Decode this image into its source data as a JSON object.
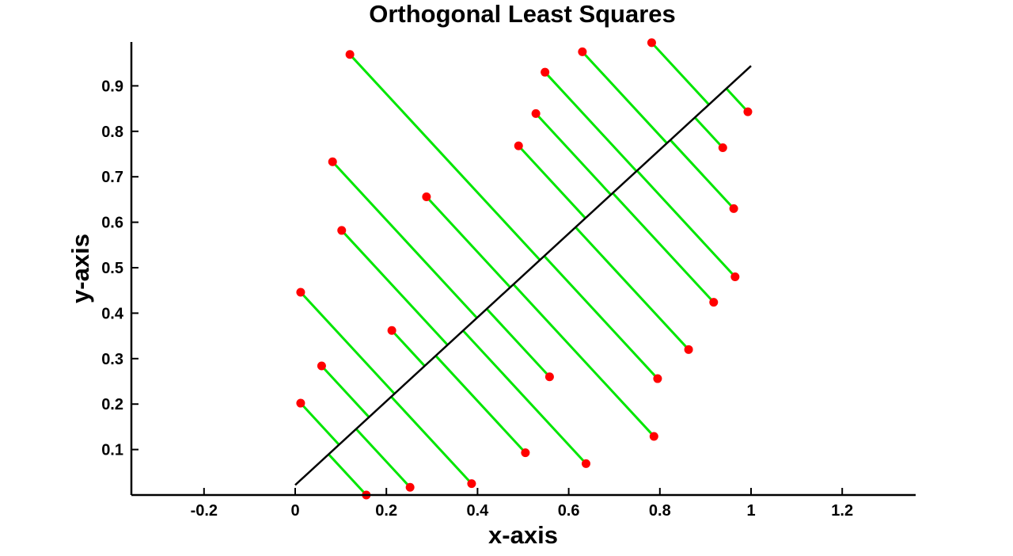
{
  "chart_data": {
    "type": "scatter",
    "title": "Orthogonal Least Squares",
    "xlabel": "x-axis",
    "ylabel": "y-axis",
    "xlim": [
      -0.36,
      1.36
    ],
    "ylim": [
      0.0,
      1.01
    ],
    "x_ticks": [
      "-0.2",
      "0",
      "0.2",
      "0.4",
      "0.6",
      "0.8",
      "1",
      "1.2"
    ],
    "y_ticks": [
      "0.1",
      "0.2",
      "0.3",
      "0.4",
      "0.5",
      "0.6",
      "0.7",
      "0.8",
      "0.9"
    ],
    "grid": false,
    "fit_line": {
      "x": [
        0.0,
        1.0
      ],
      "y": [
        0.022,
        0.944
      ]
    },
    "points": {
      "x": [
        0.156,
        0.012,
        0.252,
        0.058,
        0.387,
        0.012,
        0.505,
        0.212,
        0.638,
        0.102,
        0.558,
        0.082,
        0.787,
        0.288,
        0.795,
        0.12,
        0.863,
        0.49,
        0.918,
        0.528,
        0.965,
        0.548,
        0.962,
        0.63,
        0.938,
        0.782,
        0.993
      ],
      "y": [
        0.0,
        0.202,
        0.017,
        0.284,
        0.025,
        0.446,
        0.093,
        0.362,
        0.069,
        0.582,
        0.26,
        0.733,
        0.129,
        0.656,
        0.256,
        0.969,
        0.32,
        0.768,
        0.424,
        0.839,
        0.48,
        0.93,
        0.63,
        0.975,
        0.764,
        0.995,
        0.843
      ]
    },
    "marker_color": "#ff0000",
    "residual_color": "#00e600",
    "line_color": "#000000"
  }
}
